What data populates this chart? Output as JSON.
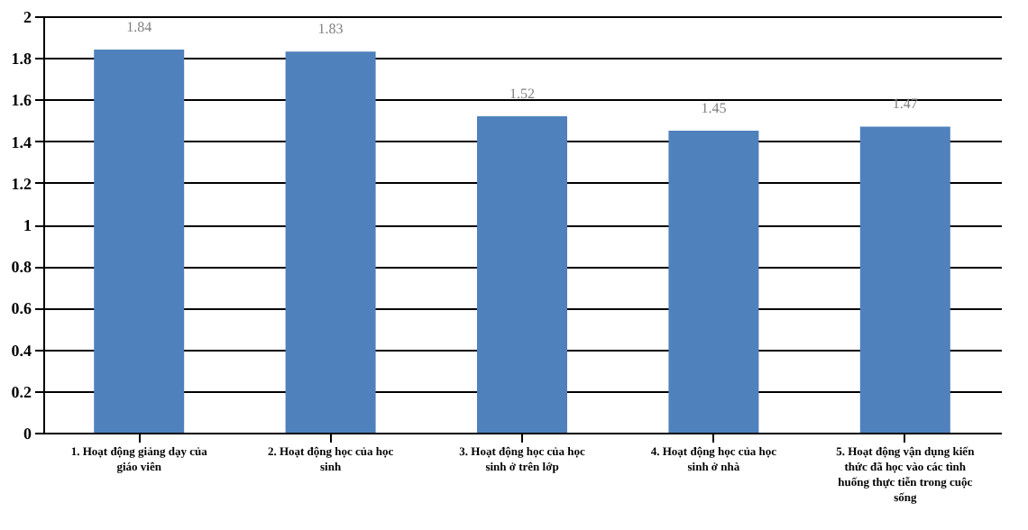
{
  "chart_data": {
    "type": "bar",
    "categories": [
      "1. Hoạt động giảng dạy của giáo viên",
      "2. Hoạt động học của học sinh",
      "3. Hoạt động học của học sinh ở trên lớp",
      "4. Hoạt động học của học sinh ở nhà",
      "5. Hoạt động vận dụng kiến thức đã học vào các tình huống thực tiễn trong cuộc sống"
    ],
    "values": [
      1.84,
      1.83,
      1.52,
      1.45,
      1.47
    ],
    "color": "#4f81bd",
    "ylim": [
      0,
      2
    ],
    "yticks": [
      0,
      0.2,
      0.4,
      0.6,
      0.8,
      1,
      1.2,
      1.4,
      1.6,
      1.8,
      2
    ],
    "grid": "y",
    "data_labels": true
  }
}
